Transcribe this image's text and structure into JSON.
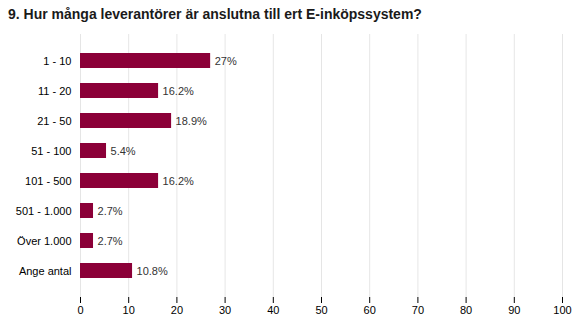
{
  "chart_data": {
    "type": "bar",
    "orientation": "horizontal",
    "title": "9. Hur många leverantörer är anslutna till ert E-inköpssystem?",
    "categories": [
      "1 - 10",
      "11 - 20",
      "21 - 50",
      "51 - 100",
      "101 - 500",
      "501 - 1.000",
      "Över 1.000",
      "Ange antal"
    ],
    "values": [
      27,
      16.2,
      18.9,
      5.4,
      16.2,
      2.7,
      2.7,
      10.8
    ],
    "value_labels": [
      "27%",
      "16.2%",
      "18.9%",
      "5.4%",
      "16.2%",
      "2.7%",
      "2.7%",
      "10.8%"
    ],
    "data_labels": true,
    "color": "#8B0038",
    "xlim": [
      0,
      100
    ],
    "xticks": [
      0,
      10,
      20,
      30,
      40,
      50,
      60,
      70,
      80,
      90,
      100
    ],
    "grid": true
  }
}
